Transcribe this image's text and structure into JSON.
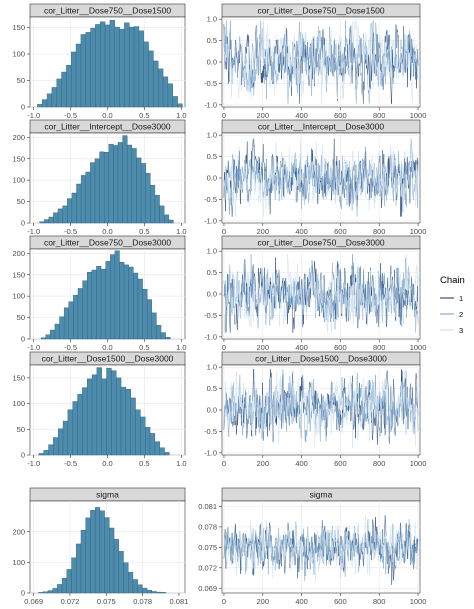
{
  "colors": {
    "bar_fill": "#4E8CAE",
    "bar_stroke": "#2F5F7A",
    "chain_1": "#08306B",
    "chain_2": "#6B9CC4",
    "chain_3": "#C6DBEF",
    "strip_bg": "#D9D9D9",
    "grid": "#EBEBEB"
  },
  "legend": {
    "title": "Chain",
    "labels": [
      "1",
      "2",
      "3"
    ],
    "position": "right"
  },
  "chart_data": [
    {
      "type": "bar",
      "kind": "histogram",
      "title": "cor_Litter__Dose750__Dose1500",
      "xlim": [
        -1.05,
        1.05
      ],
      "ylim": [
        0,
        170
      ],
      "x_ticks": [
        "-1.0",
        "-0.5",
        "0.0",
        "0.5",
        "1.0"
      ],
      "x_tick_values": [
        -1.0,
        -0.5,
        0.0,
        0.5,
        1.0
      ],
      "y_ticks": [
        "0",
        "50",
        "100",
        "150"
      ],
      "y_tick_values": [
        0,
        50,
        100,
        150
      ],
      "bins_start": -0.95,
      "bin_width": 0.0655,
      "values": [
        5,
        14,
        25,
        37,
        53,
        66,
        79,
        104,
        119,
        137,
        141,
        149,
        156,
        161,
        155,
        164,
        151,
        147,
        159,
        151,
        152,
        144,
        123,
        106,
        87,
        72,
        57,
        44,
        20,
        6
      ]
    },
    {
      "type": "line",
      "kind": "trace",
      "title": "cor_Litter__Dose750__Dose1500",
      "xlim": [
        -10,
        1010
      ],
      "ylim": [
        -1.05,
        1.05
      ],
      "x_ticks": [
        "0",
        "200",
        "400",
        "600",
        "800",
        "1000"
      ],
      "x_tick_values": [
        0,
        200,
        400,
        600,
        800,
        1000
      ],
      "y_ticks": [
        "-1.0",
        "-0.5",
        "0.0",
        "0.5",
        "1.0"
      ],
      "y_tick_values": [
        -1.0,
        -0.5,
        0.0,
        0.5,
        1.0
      ],
      "trace_center": 0.05,
      "trace_spread": 0.36,
      "trace_min": -0.97,
      "trace_max": 0.97,
      "iterations": 1000,
      "series": [
        {
          "name": "1"
        },
        {
          "name": "2"
        },
        {
          "name": "3"
        }
      ]
    },
    {
      "type": "bar",
      "kind": "histogram",
      "title": "cor_Litter__Intercept__Dose3000",
      "xlim": [
        -1.05,
        1.05
      ],
      "ylim": [
        0,
        210
      ],
      "x_ticks": [
        "-1.0",
        "-0.5",
        "0.0",
        "0.5",
        "1.0"
      ],
      "x_tick_values": [
        -1.0,
        -0.5,
        0.0,
        0.5,
        1.0
      ],
      "y_ticks": [
        "0",
        "50",
        "100",
        "150",
        "200"
      ],
      "y_tick_values": [
        0,
        50,
        100,
        150,
        200
      ],
      "bins_start": -0.92,
      "bin_width": 0.0625,
      "values": [
        3,
        8,
        14,
        24,
        33,
        40,
        57,
        70,
        91,
        111,
        119,
        141,
        150,
        166,
        165,
        184,
        181,
        188,
        204,
        182,
        174,
        152,
        139,
        116,
        88,
        65,
        40,
        19,
        7
      ]
    },
    {
      "type": "line",
      "kind": "trace",
      "title": "cor_Litter__Intercept__Dose3000",
      "xlim": [
        -10,
        1010
      ],
      "ylim": [
        -1.05,
        1.05
      ],
      "x_ticks": [
        "0",
        "200",
        "400",
        "600",
        "800",
        "1000"
      ],
      "x_tick_values": [
        0,
        200,
        400,
        600,
        800,
        1000
      ],
      "y_ticks": [
        "-1.0",
        "-0.5",
        "0.0",
        "0.5",
        "1.0"
      ],
      "y_tick_values": [
        -1.0,
        -0.5,
        0.0,
        0.5,
        1.0
      ],
      "trace_center": 0.02,
      "trace_spread": 0.32,
      "trace_min": -0.9,
      "trace_max": 0.92,
      "iterations": 1000,
      "series": [
        {
          "name": "1"
        },
        {
          "name": "2"
        },
        {
          "name": "3"
        }
      ]
    },
    {
      "type": "bar",
      "kind": "histogram",
      "title": "cor_Litter__Dose750__Dose3000",
      "xlim": [
        -1.05,
        1.05
      ],
      "ylim": [
        0,
        210
      ],
      "x_ticks": [
        "-1.0",
        "-0.5",
        "0.0",
        "0.5",
        "1.0"
      ],
      "x_tick_values": [
        -1.0,
        -0.5,
        0.0,
        0.5,
        1.0
      ],
      "y_ticks": [
        "0",
        "50",
        "100",
        "150",
        "200"
      ],
      "y_tick_values": [
        0,
        50,
        100,
        150,
        200
      ],
      "bins_start": -0.9,
      "bin_width": 0.0625,
      "values": [
        3,
        10,
        21,
        35,
        52,
        73,
        87,
        102,
        118,
        136,
        156,
        161,
        170,
        163,
        181,
        197,
        206,
        179,
        173,
        168,
        154,
        140,
        116,
        92,
        61,
        32,
        15,
        4
      ]
    },
    {
      "type": "line",
      "kind": "trace",
      "title": "cor_Litter__Dose750__Dose3000",
      "xlim": [
        -10,
        1010
      ],
      "ylim": [
        -1.05,
        1.05
      ],
      "x_ticks": [
        "0",
        "200",
        "400",
        "600",
        "800",
        "1000"
      ],
      "x_tick_values": [
        0,
        200,
        400,
        600,
        800,
        1000
      ],
      "y_ticks": [
        "-1.0",
        "-0.5",
        "0.0",
        "0.5",
        "1.0"
      ],
      "y_tick_values": [
        -1.0,
        -0.5,
        0.0,
        0.5,
        1.0
      ],
      "trace_center": 0.0,
      "trace_spread": 0.34,
      "trace_min": -0.9,
      "trace_max": 0.93,
      "iterations": 1000,
      "series": [
        {
          "name": "1"
        },
        {
          "name": "2"
        },
        {
          "name": "3"
        }
      ]
    },
    {
      "type": "bar",
      "kind": "histogram",
      "title": "cor_Litter__Dose1500__Dose3000",
      "xlim": [
        -1.05,
        1.05
      ],
      "ylim": [
        0,
        175
      ],
      "x_ticks": [
        "-1.0",
        "-0.5",
        "0.0",
        "0.5",
        "1.0"
      ],
      "x_tick_values": [
        -1.0,
        -0.5,
        0.0,
        0.5,
        1.0
      ],
      "y_ticks": [
        "0",
        "50",
        "100",
        "150"
      ],
      "y_tick_values": [
        0,
        50,
        100,
        150
      ],
      "bins_start": -0.93,
      "bin_width": 0.0655,
      "values": [
        3,
        9,
        20,
        34,
        51,
        66,
        88,
        104,
        118,
        131,
        148,
        156,
        170,
        148,
        169,
        164,
        150,
        132,
        128,
        111,
        88,
        74,
        54,
        42,
        26,
        14,
        5
      ]
    },
    {
      "type": "line",
      "kind": "trace",
      "title": "cor_Litter__Dose1500__Dose3000",
      "xlim": [
        -10,
        1010
      ],
      "ylim": [
        -1.05,
        1.05
      ],
      "x_ticks": [
        "0",
        "200",
        "400",
        "600",
        "800",
        "1000"
      ],
      "x_tick_values": [
        0,
        200,
        400,
        600,
        800,
        1000
      ],
      "y_ticks": [
        "-1.0",
        "-0.5",
        "0.0",
        "0.5",
        "1.0"
      ],
      "y_tick_values": [
        -1.0,
        -0.5,
        0.0,
        0.5,
        1.0
      ],
      "trace_center": 0.05,
      "trace_spread": 0.33,
      "trace_min": -0.95,
      "trace_max": 0.95,
      "iterations": 1000,
      "series": [
        {
          "name": "1"
        },
        {
          "name": "2"
        },
        {
          "name": "3"
        }
      ]
    },
    {
      "type": "bar",
      "kind": "histogram",
      "title": "sigma",
      "xlim": [
        0.0687,
        0.0815
      ],
      "ylim": [
        0,
        300
      ],
      "x_ticks": [
        "0.069",
        "0.072",
        "0.075",
        "0.078",
        "0.081"
      ],
      "x_tick_values": [
        0.069,
        0.072,
        0.075,
        0.078,
        0.081
      ],
      "y_ticks": [
        "0",
        "100",
        "200"
      ],
      "y_tick_values": [
        0,
        100,
        200
      ],
      "bins_start": 0.0694,
      "bin_width": 0.00039,
      "values": [
        2,
        4,
        8,
        15,
        28,
        48,
        77,
        115,
        160,
        205,
        245,
        270,
        279,
        268,
        246,
        212,
        175,
        136,
        99,
        68,
        44,
        27,
        16,
        9,
        5,
        3,
        2
      ]
    },
    {
      "type": "line",
      "kind": "trace",
      "title": "sigma",
      "xlim": [
        -10,
        1010
      ],
      "ylim": [
        0.0683,
        0.0818
      ],
      "x_ticks": [
        "0",
        "200",
        "400",
        "600",
        "800",
        "1000"
      ],
      "x_tick_values": [
        0,
        200,
        400,
        600,
        800,
        1000
      ],
      "y_ticks": [
        "0.069",
        "0.072",
        "0.075",
        "0.078",
        "0.081"
      ],
      "y_tick_values": [
        0.069,
        0.072,
        0.075,
        0.078,
        0.081
      ],
      "trace_center": 0.075,
      "trace_spread": 0.0016,
      "trace_min": 0.0695,
      "trace_max": 0.0805,
      "iterations": 1000,
      "series": [
        {
          "name": "1"
        },
        {
          "name": "2"
        },
        {
          "name": "3"
        }
      ]
    }
  ]
}
